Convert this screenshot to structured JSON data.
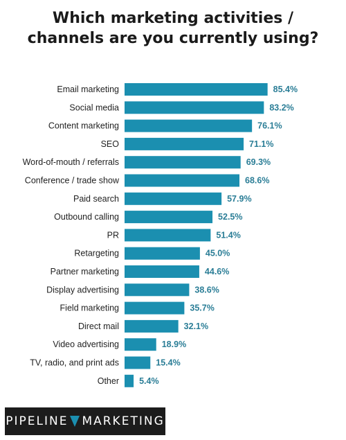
{
  "chart_data": {
    "type": "bar",
    "orientation": "horizontal",
    "title_line1": "Which marketing activities /",
    "title_line2": "channels are you currently using?",
    "categories": [
      "Email marketing",
      "Social media",
      "Content marketing",
      "SEO",
      "Word-of-mouth / referrals",
      "Conference / trade show",
      "Paid search",
      "Outbound calling",
      "PR",
      "Retargeting",
      "Partner marketing",
      "Display advertising",
      "Field marketing",
      "Direct mail",
      "Video advertising",
      "TV, radio, and print ads",
      "Other"
    ],
    "values": [
      85.4,
      83.2,
      76.1,
      71.1,
      69.3,
      68.6,
      57.9,
      52.5,
      51.4,
      45.0,
      44.6,
      38.6,
      35.7,
      32.1,
      18.9,
      15.4,
      5.4
    ],
    "value_labels": [
      "85.4%",
      "83.2%",
      "76.1%",
      "71.1%",
      "69.3%",
      "68.6%",
      "57.9%",
      "52.5%",
      "51.4%",
      "45.0%",
      "44.6%",
      "38.6%",
      "35.7%",
      "32.1%",
      "18.9%",
      "15.4%",
      "5.4%"
    ],
    "bar_color": "#1b8fb0",
    "label_color": "#2a7d96",
    "grid": false
  },
  "logo": {
    "left_word": "PIPELINE",
    "right_word": "MARKETING"
  }
}
